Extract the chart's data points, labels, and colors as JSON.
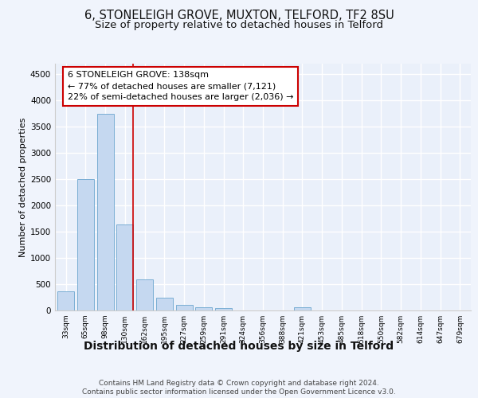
{
  "title1": "6, STONELEIGH GROVE, MUXTON, TELFORD, TF2 8SU",
  "title2": "Size of property relative to detached houses in Telford",
  "xlabel": "Distribution of detached houses by size in Telford",
  "ylabel": "Number of detached properties",
  "bin_labels": [
    "33sqm",
    "65sqm",
    "98sqm",
    "130sqm",
    "162sqm",
    "195sqm",
    "227sqm",
    "259sqm",
    "291sqm",
    "324sqm",
    "356sqm",
    "388sqm",
    "421sqm",
    "453sqm",
    "485sqm",
    "518sqm",
    "550sqm",
    "582sqm",
    "614sqm",
    "647sqm",
    "679sqm"
  ],
  "bin_values": [
    370,
    2500,
    3750,
    1640,
    590,
    240,
    105,
    60,
    40,
    0,
    0,
    0,
    60,
    0,
    0,
    0,
    0,
    0,
    0,
    0,
    0
  ],
  "bar_color": "#c5d8f0",
  "bar_edge_color": "#7aaed4",
  "red_line_bin": 3,
  "annotation_line1": "6 STONELEIGH GROVE: 138sqm",
  "annotation_line2": "← 77% of detached houses are smaller (7,121)",
  "annotation_line3": "22% of semi-detached houses are larger (2,036) →",
  "annotation_box_color": "#ffffff",
  "annotation_border_color": "#cc0000",
  "ylim": [
    0,
    4700
  ],
  "yticks": [
    0,
    500,
    1000,
    1500,
    2000,
    2500,
    3000,
    3500,
    4000,
    4500
  ],
  "footer": "Contains HM Land Registry data © Crown copyright and database right 2024.\nContains public sector information licensed under the Open Government Licence v3.0.",
  "bg_color": "#eaf0fa",
  "grid_color": "#ffffff",
  "title1_fontsize": 10.5,
  "title2_fontsize": 9.5,
  "xlabel_fontsize": 10,
  "ylabel_fontsize": 8
}
